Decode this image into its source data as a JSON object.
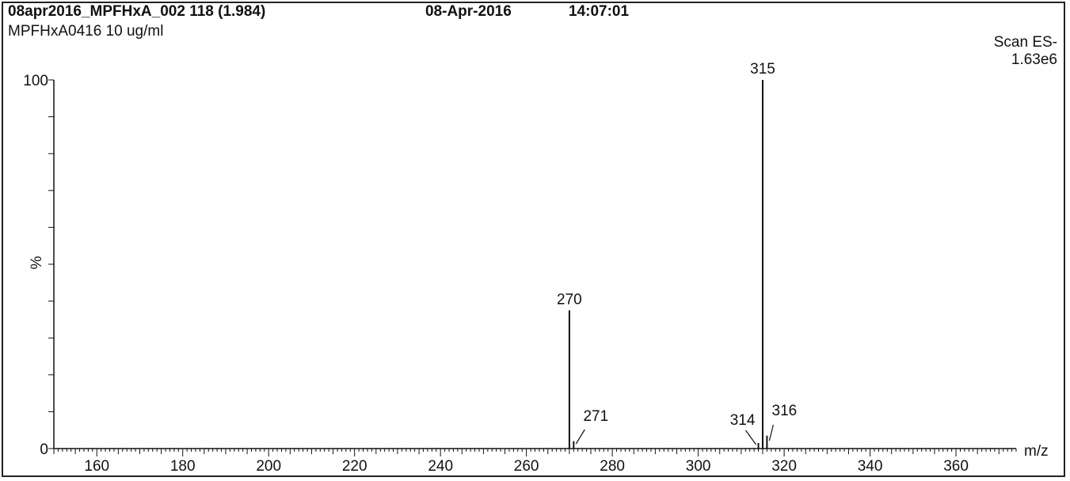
{
  "header": {
    "file_info": "08apr2016_MPFHxA_002  118 (1.984)",
    "date": "08-Apr-2016",
    "time": "14:07:01",
    "sample": "MPFHxA0416 10 ug/ml",
    "scan_mode": "Scan ES-",
    "intensity": "1.63e6"
  },
  "chart_data": {
    "type": "bar",
    "title": "",
    "xlabel": "m/z",
    "ylabel": "%",
    "xlim": [
      150,
      374
    ],
    "ylim": [
      0,
      100
    ],
    "x_ticks": [
      160,
      180,
      200,
      220,
      240,
      260,
      280,
      300,
      320,
      340,
      360
    ],
    "y_ticks": [
      0,
      100
    ],
    "grid": false,
    "legend": "none",
    "peaks": [
      {
        "mz": 270,
        "label": "270",
        "intensity": 37.5
      },
      {
        "mz": 271,
        "label": "271",
        "intensity": 2.0
      },
      {
        "mz": 314,
        "label": "314",
        "intensity": 1.5
      },
      {
        "mz": 315,
        "label": "315",
        "intensity": 100
      },
      {
        "mz": 316,
        "label": "316",
        "intensity": 3.5
      }
    ]
  }
}
